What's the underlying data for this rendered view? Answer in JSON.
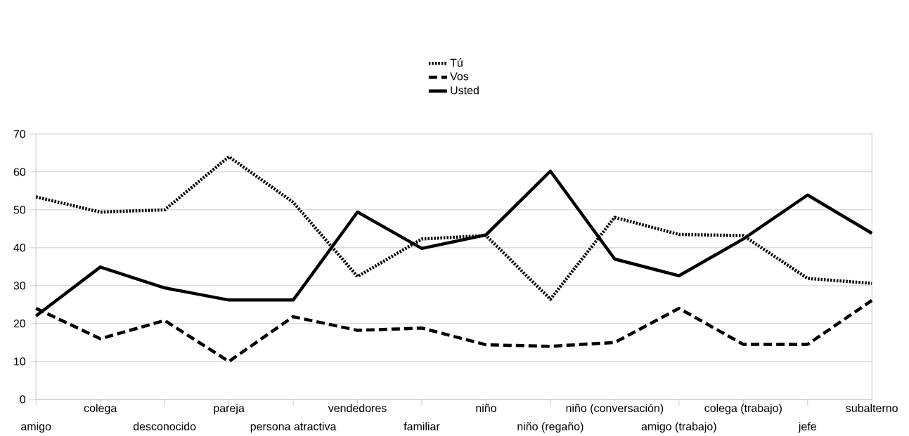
{
  "chart_data": {
    "type": "line",
    "categories": [
      "amigo",
      "colega",
      "desconocido",
      "pareja",
      "persona atractiva",
      "vendedores",
      "familiar",
      "niño",
      "niño (regaño)",
      "niño (conversación)",
      "amigo (trabajo)",
      "colega (trabajo)",
      "jefe",
      "subalterno"
    ],
    "series": [
      {
        "name": "Tú",
        "color": "#000000",
        "line_style": "dotted",
        "values": [
          53.4,
          49.4,
          50,
          64,
          52,
          32.4,
          42.3,
          43.2,
          26.4,
          48,
          43.5,
          43.2,
          31.9,
          30.6
        ]
      },
      {
        "name": "Vos",
        "color": "#000000",
        "line_style": "dashed",
        "values": [
          24,
          16,
          20.8,
          10,
          21.8,
          18.2,
          18.8,
          14.4,
          14,
          15,
          24,
          14.5,
          14.5,
          26.1
        ]
      },
      {
        "name": "Usted",
        "color": "#000000",
        "line_style": "solid",
        "values": [
          22,
          34.9,
          29.4,
          26.2,
          26.2,
          49.4,
          39.8,
          43.4,
          60.2,
          37,
          32.6,
          42.3,
          53.9,
          43.8
        ]
      }
    ],
    "ylim": [
      0,
      70
    ],
    "yticks": [
      0,
      10,
      20,
      30,
      40,
      50,
      60,
      70
    ],
    "grid": "y",
    "legend": "top"
  }
}
